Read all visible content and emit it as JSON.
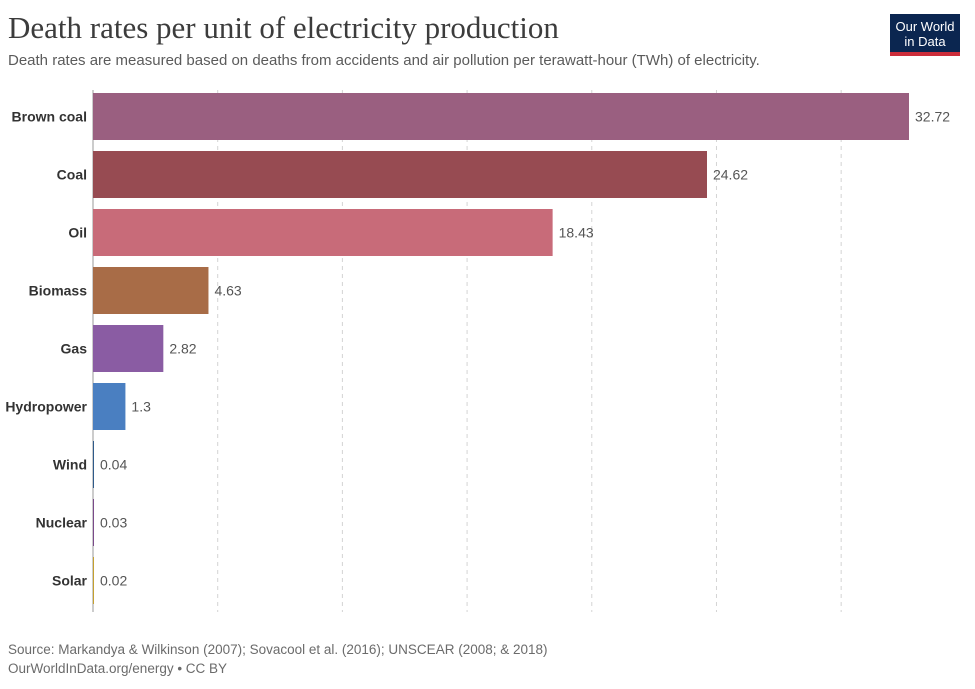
{
  "header": {
    "title": "Death rates per unit of electricity production",
    "subtitle": "Death rates are measured based on deaths from accidents and air pollution per terawatt-hour (TWh) of electricity."
  },
  "logo": {
    "line1": "Our World",
    "line2": "in Data"
  },
  "footer": {
    "source": "Source: Markandya & Wilkinson (2007); Sovacool et al. (2016); UNSCEAR (2008; & 2018)",
    "link": "OurWorldInData.org/energy • CC BY"
  },
  "chart_data": {
    "type": "bar",
    "orientation": "horizontal",
    "categories": [
      "Brown coal",
      "Coal",
      "Oil",
      "Biomass",
      "Gas",
      "Hydropower",
      "Wind",
      "Nuclear",
      "Solar"
    ],
    "values": [
      32.72,
      24.62,
      18.43,
      4.63,
      2.82,
      1.3,
      0.04,
      0.03,
      0.02
    ],
    "value_labels": [
      "32.72",
      "24.62",
      "18.43",
      "4.63",
      "2.82",
      "1.3",
      "0.04",
      "0.03",
      "0.02"
    ],
    "colors": [
      "#9a5f80",
      "#974b52",
      "#c86b79",
      "#a86c47",
      "#8a5ca3",
      "#4a7fc1",
      "#2f5a8a",
      "#7a4a8a",
      "#c4a030"
    ],
    "xlim": [
      0,
      32.72
    ],
    "grid": "vertical dashed",
    "gridlines_at": [
      5,
      10,
      15,
      20,
      25,
      30
    ],
    "xlabel": "",
    "ylabel": ""
  }
}
